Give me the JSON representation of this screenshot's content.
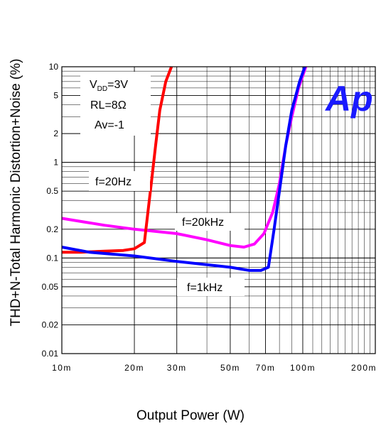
{
  "chart_data": {
    "type": "line",
    "xlabel": "Output Power (W)",
    "ylabel": "THD+N-Total Harmonic Distortion+Noise (%)",
    "xscale": "log",
    "yscale": "log",
    "xlim": [
      0.01,
      0.2
    ],
    "ylim": [
      0.01,
      10
    ],
    "grid": true,
    "x_ticks": [
      {
        "value": 0.01,
        "label": "10m"
      },
      {
        "value": 0.02,
        "label": "20m"
      },
      {
        "value": 0.03,
        "label": "30m"
      },
      {
        "value": 0.05,
        "label": "50m"
      },
      {
        "value": 0.07,
        "label": "70m"
      },
      {
        "value": 0.1,
        "label": "100m"
      },
      {
        "value": 0.2,
        "label": "200m"
      }
    ],
    "y_ticks": [
      {
        "value": 10,
        "label": "10"
      },
      {
        "value": 5,
        "label": "5"
      },
      {
        "value": 2,
        "label": "2"
      },
      {
        "value": 1,
        "label": "1"
      },
      {
        "value": 0.5,
        "label": "0.5"
      },
      {
        "value": 0.2,
        "label": "0.2"
      },
      {
        "value": 0.1,
        "label": "0.1"
      },
      {
        "value": 0.05,
        "label": "0.05"
      },
      {
        "value": 0.02,
        "label": "0.02"
      },
      {
        "value": 0.01,
        "label": "0.01"
      }
    ],
    "series": [
      {
        "name": "f=20Hz",
        "color": "#ff0000",
        "points": [
          [
            0.01,
            0.115
          ],
          [
            0.012,
            0.115
          ],
          [
            0.015,
            0.118
          ],
          [
            0.018,
            0.12
          ],
          [
            0.02,
            0.125
          ],
          [
            0.022,
            0.145
          ],
          [
            0.0235,
            0.6
          ],
          [
            0.0245,
            1.5
          ],
          [
            0.0255,
            3.5
          ],
          [
            0.027,
            7
          ],
          [
            0.0285,
            10
          ]
        ]
      },
      {
        "name": "f=1kHz",
        "color": "#0000ff",
        "points": [
          [
            0.01,
            0.13
          ],
          [
            0.013,
            0.115
          ],
          [
            0.02,
            0.105
          ],
          [
            0.03,
            0.092
          ],
          [
            0.05,
            0.08
          ],
          [
            0.06,
            0.074
          ],
          [
            0.067,
            0.074
          ],
          [
            0.072,
            0.08
          ],
          [
            0.076,
            0.2
          ],
          [
            0.08,
            0.5
          ],
          [
            0.085,
            1.5
          ],
          [
            0.09,
            3.5
          ],
          [
            0.097,
            7
          ],
          [
            0.102,
            10
          ]
        ]
      },
      {
        "name": "f=20kHz",
        "color": "#ff00ff",
        "points": [
          [
            0.01,
            0.26
          ],
          [
            0.015,
            0.22
          ],
          [
            0.02,
            0.2
          ],
          [
            0.03,
            0.18
          ],
          [
            0.04,
            0.155
          ],
          [
            0.05,
            0.135
          ],
          [
            0.057,
            0.13
          ],
          [
            0.063,
            0.14
          ],
          [
            0.069,
            0.18
          ],
          [
            0.075,
            0.3
          ],
          [
            0.08,
            0.6
          ],
          [
            0.085,
            1.5
          ],
          [
            0.09,
            3
          ],
          [
            0.096,
            6
          ],
          [
            0.103,
            10
          ]
        ]
      }
    ],
    "annotations": {
      "conditions": [
        "V",
        "DD",
        "=3V",
        "RL=8Ω",
        "Av=-1"
      ],
      "labels": [
        "f=20Hz",
        "f=20kHz",
        "f=1kHz"
      ],
      "logo": "Ap"
    }
  }
}
